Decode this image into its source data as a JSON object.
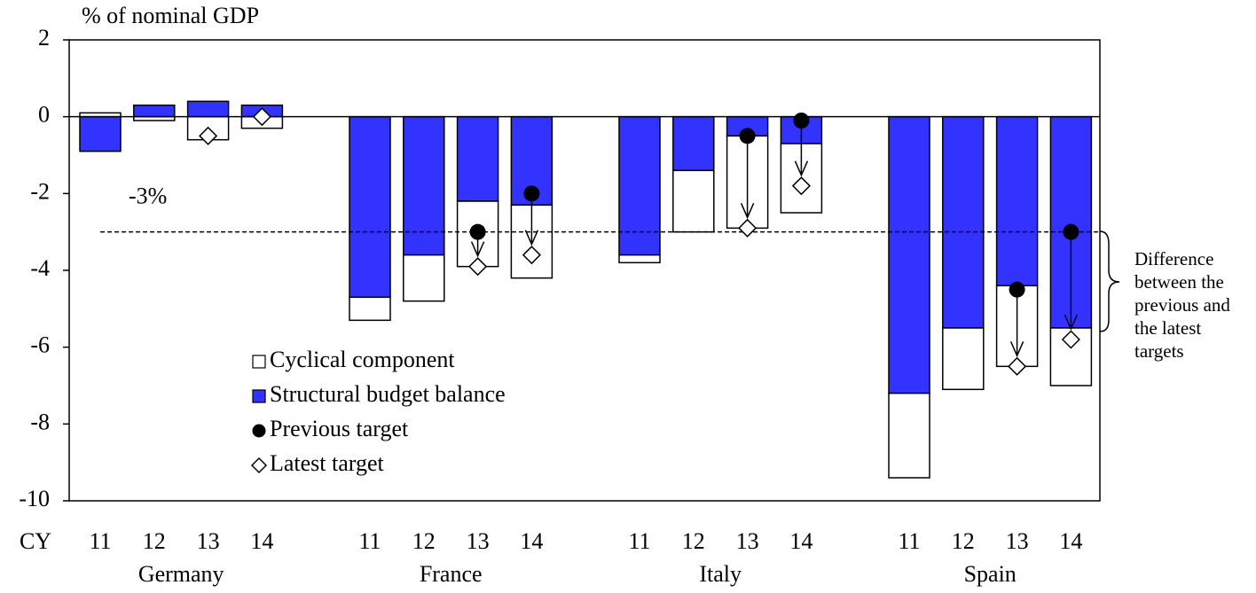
{
  "chart_data": {
    "type": "bar",
    "y_axis_label": "% of nominal GDP",
    "x_axis_label": "CY",
    "groups": [
      "Germany",
      "France",
      "Italy",
      "Spain"
    ],
    "categories": [
      "11",
      "12",
      "13",
      "14",
      "11",
      "12",
      "13",
      "14",
      "11",
      "12",
      "13",
      "14",
      "11",
      "12",
      "13",
      "14"
    ],
    "series": [
      {
        "name": "Cyclical component",
        "color": "#ffffff",
        "values": [
          0.1,
          -0.1,
          -0.6,
          -0.3,
          -0.6,
          -1.2,
          -1.7,
          -1.9,
          -0.2,
          -1.6,
          -2.4,
          -1.8,
          -2.2,
          -1.6,
          -2.1,
          -1.5
        ]
      },
      {
        "name": "Structural budget balance",
        "color": "#3333ff",
        "values": [
          -0.9,
          0.3,
          0.4,
          0.3,
          -4.7,
          -3.6,
          -2.2,
          -2.3,
          -3.6,
          -1.4,
          -0.5,
          -0.7,
          -7.2,
          -5.5,
          -4.4,
          -5.5
        ]
      },
      {
        "name": "Previous target",
        "color": "#000000",
        "marker": "circle",
        "values": [
          null,
          null,
          null,
          null,
          null,
          null,
          -3.0,
          -2.0,
          null,
          null,
          -0.5,
          -0.1,
          null,
          null,
          -4.5,
          -3.0
        ]
      },
      {
        "name": "Latest target",
        "color": "#ffffff",
        "marker": "diamond",
        "values": [
          null,
          null,
          -0.5,
          0.0,
          null,
          null,
          -3.9,
          -3.6,
          null,
          null,
          -2.9,
          -1.8,
          null,
          null,
          -6.5,
          -5.8
        ]
      }
    ],
    "reference_line": {
      "value": -3,
      "label": "-3%"
    },
    "annotation": "Difference between the previous and the latest targets",
    "ylim": [
      -10,
      2
    ],
    "yticks": [
      -10,
      -8,
      -6,
      -4,
      -2,
      0,
      2
    ]
  }
}
